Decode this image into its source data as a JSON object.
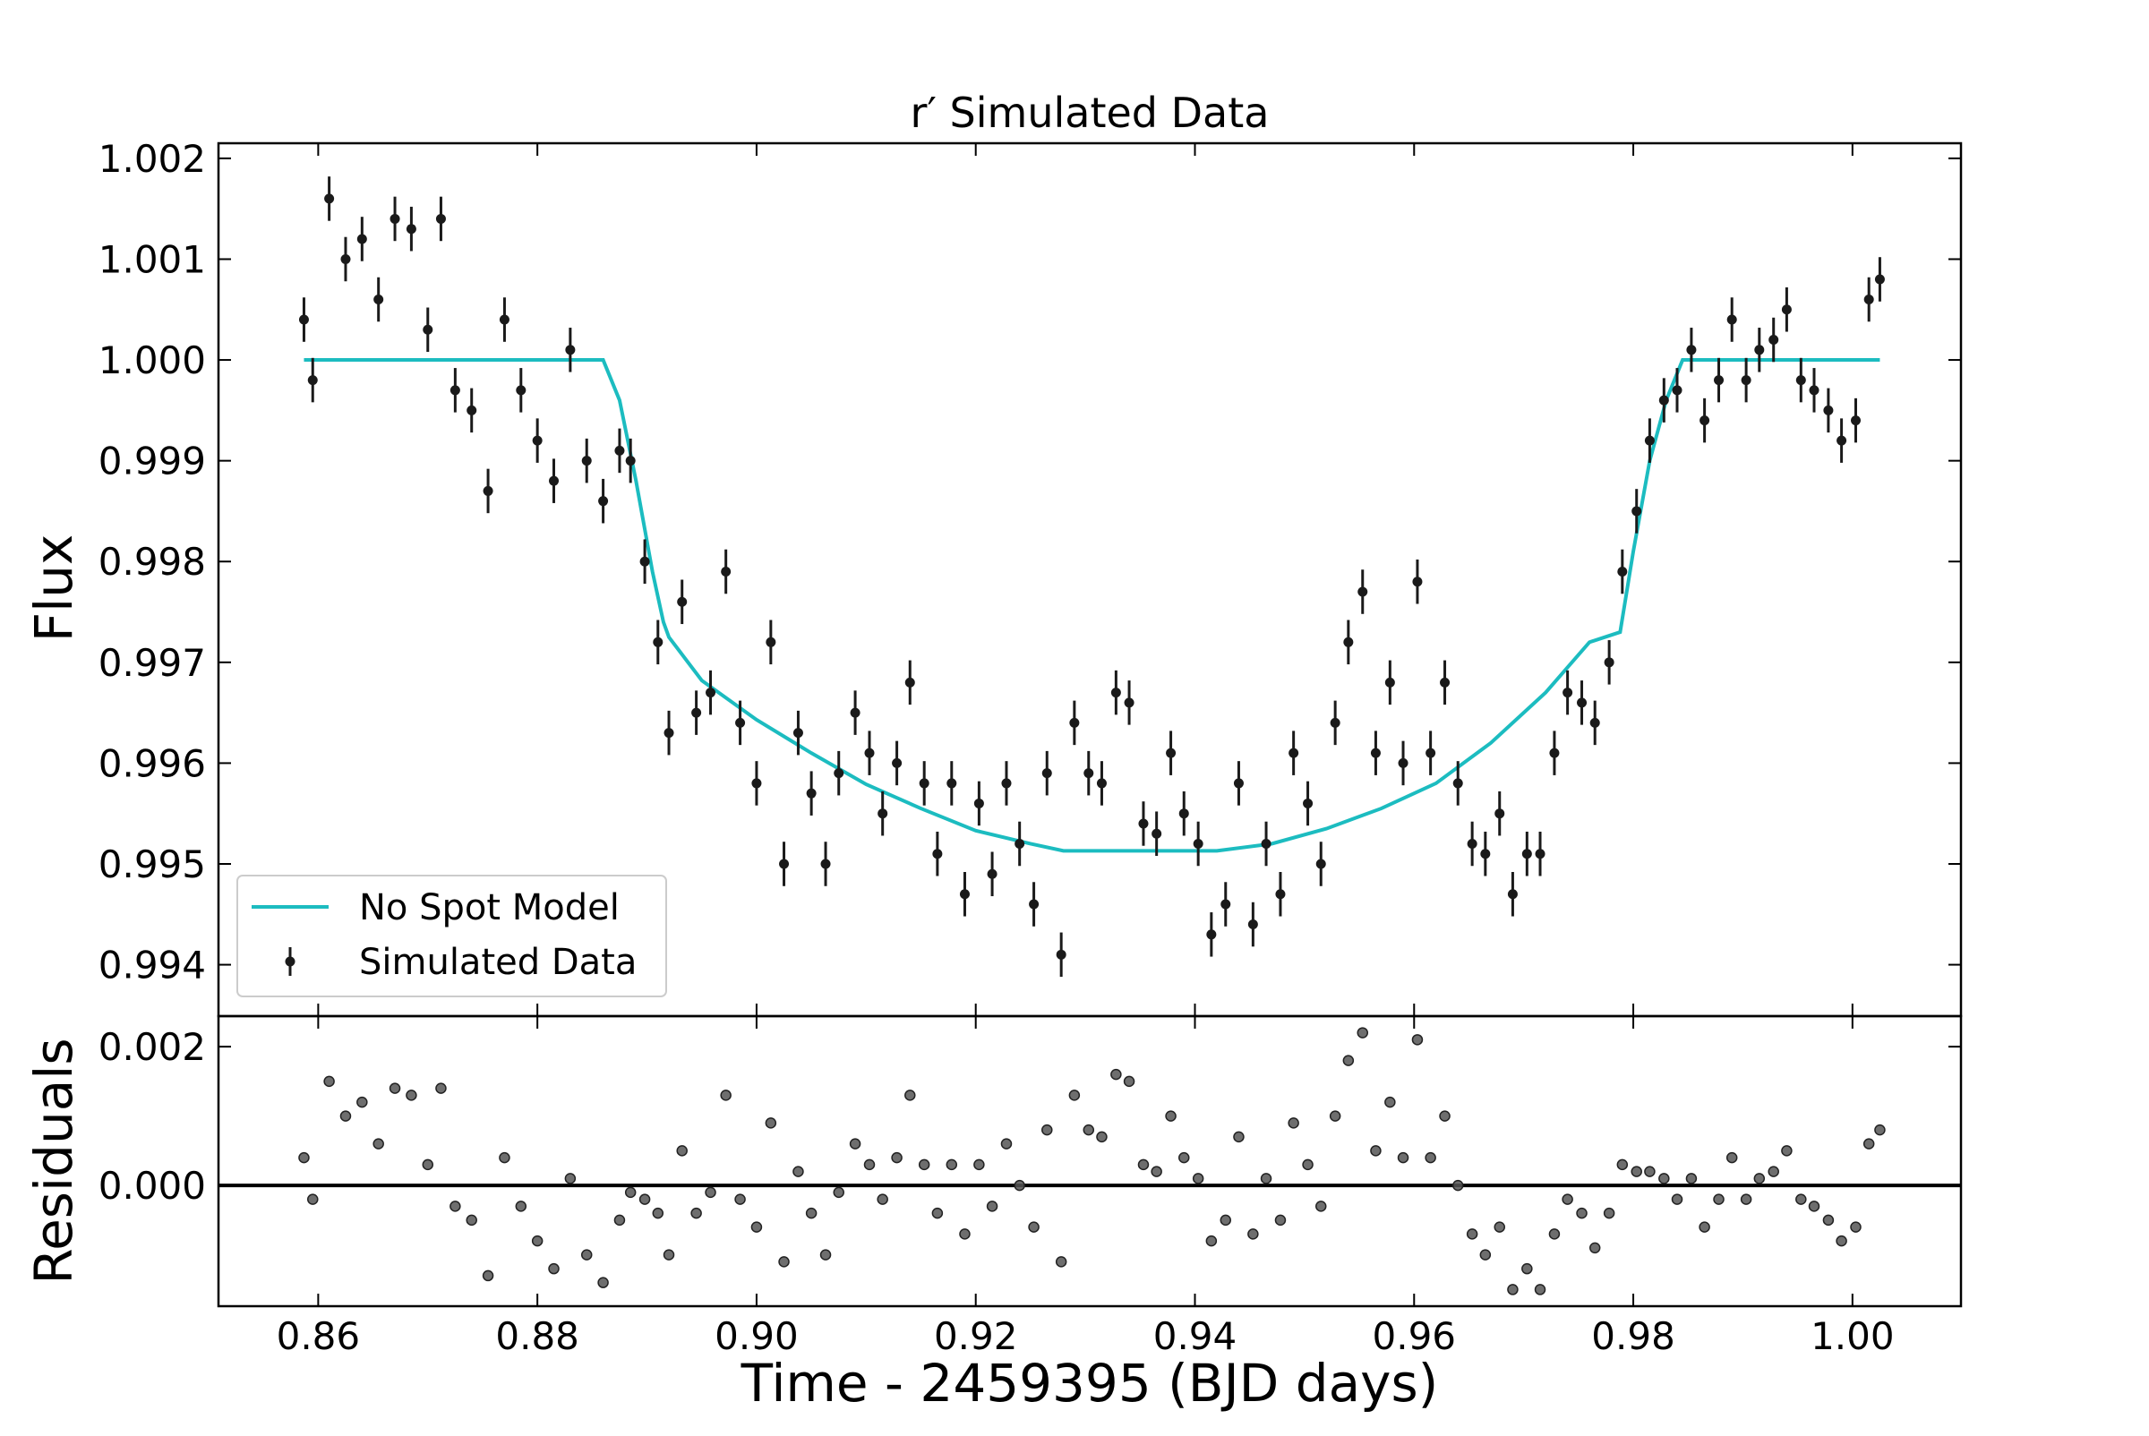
{
  "chart_data": {
    "type": "errorbar",
    "title": "r′ Simulated Data",
    "xlabel": "Time - 2459395 (BJD days)",
    "ylabel": "Flux",
    "xlim": [
      0.8509,
      1.0099
    ],
    "xticks": [
      0.86,
      0.88,
      {
        "value": 0.9,
        "label": "0.90"
      },
      0.92,
      0.94,
      0.96,
      0.98,
      {
        "value": 1,
        "label": "1.00"
      }
    ],
    "ylim": [
      0.99349,
      1.00215
    ],
    "yticks": [
      0.994,
      0.995,
      0.996,
      0.997,
      0.998,
      0.999,
      {
        "value": 1,
        "label": "1.000"
      },
      1.001,
      1.002
    ],
    "legend": "lower left",
    "x": [
      0.8587,
      0.8595,
      0.861,
      0.8625,
      0.864,
      0.8655,
      0.867,
      0.8685,
      0.87,
      0.8712,
      0.8725,
      0.874,
      0.8755,
      0.877,
      0.8785,
      0.88,
      0.8815,
      0.883,
      0.8845,
      0.886,
      0.8875,
      0.8885,
      0.8898,
      0.891,
      0.892,
      0.8932,
      0.8945,
      0.8958,
      0.8972,
      0.8985,
      0.9,
      0.9013,
      0.9025,
      0.9038,
      0.905,
      0.9063,
      0.9075,
      0.909,
      0.9103,
      0.9115,
      0.9128,
      0.914,
      0.9153,
      0.9165,
      0.9178,
      0.919,
      0.9203,
      0.9215,
      0.9228,
      0.924,
      0.9253,
      0.9265,
      0.9278,
      0.929,
      0.9303,
      0.9315,
      0.9328,
      0.934,
      0.9353,
      0.9365,
      0.9378,
      0.939,
      0.9403,
      0.9415,
      0.9428,
      0.944,
      0.9453,
      0.9465,
      0.9478,
      0.949,
      0.9503,
      0.9515,
      0.9528,
      0.954,
      0.9553,
      0.9565,
      0.9578,
      0.959,
      0.9603,
      0.9615,
      0.9628,
      0.964,
      0.9653,
      0.9665,
      0.9678,
      0.969,
      0.9703,
      0.9715,
      0.9728,
      0.974,
      0.9753,
      0.9765,
      0.9778,
      0.979,
      0.9803,
      0.9815,
      0.9828,
      0.984,
      0.9853,
      0.9865,
      0.9878,
      0.989,
      0.9903,
      0.9915,
      0.9928,
      0.994,
      0.9953,
      0.9965,
      0.9978,
      0.999,
      1.0003,
      1.0015,
      1.0025
    ],
    "series": [
      {
        "name": "No Spot Model",
        "type": "line",
        "color": "#1cbcc0",
        "x": [
          0.8587,
          0.886,
          0.8875,
          0.889,
          0.8905,
          0.8915,
          0.892,
          0.895,
          0.9,
          0.905,
          0.91,
          0.915,
          0.92,
          0.925,
          0.928,
          0.935,
          0.942,
          0.947,
          0.952,
          0.957,
          0.962,
          0.967,
          0.972,
          0.976,
          0.9788,
          0.98,
          0.9815,
          0.983,
          0.9845,
          1.0025
        ],
        "values": [
          1.0,
          1.0,
          0.9996,
          0.9988,
          0.9979,
          0.9974,
          0.99725,
          0.99682,
          0.99643,
          0.9961,
          0.99579,
          0.99555,
          0.99533,
          0.9952,
          0.99513,
          0.99513,
          0.99513,
          0.9952,
          0.99535,
          0.99555,
          0.9958,
          0.9962,
          0.9967,
          0.9972,
          0.9973,
          0.9981,
          0.999,
          0.9996,
          1.0,
          1.0
        ]
      },
      {
        "name": "Simulated Data",
        "type": "errorbar",
        "color": "#1a1a1a",
        "yerr": 0.00022,
        "values": [
          1.0004,
          0.9998,
          1.0016,
          1.001,
          1.0012,
          1.0006,
          1.0014,
          1.0013,
          1.0003,
          1.0014,
          0.9997,
          0.9995,
          0.9987,
          1.0004,
          0.9997,
          0.9992,
          0.9988,
          1.0001,
          0.999,
          0.9986,
          0.9991,
          0.999,
          0.998,
          0.9972,
          0.9963,
          0.9976,
          0.9965,
          0.9967,
          0.9979,
          0.9964,
          0.9958,
          0.9972,
          0.995,
          0.9963,
          0.9957,
          0.995,
          0.9959,
          0.9965,
          0.9961,
          0.9955,
          0.996,
          0.9968,
          0.9958,
          0.9951,
          0.9958,
          0.9947,
          0.9956,
          0.9949,
          0.9958,
          0.9952,
          0.9946,
          0.9959,
          0.9941,
          0.9964,
          0.9959,
          0.9958,
          0.9967,
          0.9966,
          0.9954,
          0.9953,
          0.9961,
          0.9955,
          0.9952,
          0.9943,
          0.9946,
          0.9958,
          0.9944,
          0.9952,
          0.9947,
          0.9961,
          0.9956,
          0.995,
          0.9964,
          0.9972,
          0.9977,
          0.9961,
          0.9968,
          0.996,
          0.9978,
          0.9961,
          0.9968,
          0.9958,
          0.9952,
          0.9951,
          0.9955,
          0.9947,
          0.9951,
          0.9951,
          0.9961,
          0.9967,
          0.9966,
          0.9964,
          0.997,
          0.9979,
          0.9985,
          0.9992,
          0.9996,
          0.9997,
          1.0001,
          0.9994,
          0.9998,
          1.0004,
          0.9998,
          1.0001,
          1.0002,
          1.0005,
          0.9998,
          0.9997,
          0.9995,
          0.9992,
          0.9994,
          1.0006,
          1.0008
        ]
      }
    ],
    "residuals": {
      "type": "scatter",
      "ylabel": "Residuals",
      "color": "#555555",
      "reference_line": 0,
      "ylim": [
        -0.00174,
        0.00244
      ],
      "yticks": [
        {
          "value": 0,
          "label": "0.000"
        },
        0.002
      ],
      "values": [
        0.0004,
        -0.0002,
        0.0015,
        0.001,
        0.0012,
        0.0006,
        0.0014,
        0.0013,
        0.0003,
        0.0014,
        -0.0003,
        -0.0005,
        -0.0013,
        0.0004,
        -0.0003,
        -0.0008,
        -0.0012,
        0.0001,
        -0.001,
        -0.0014,
        -0.0005,
        -0.0001,
        -0.0002,
        -0.0004,
        -0.001,
        0.0005,
        -0.0004,
        -0.0001,
        0.0013,
        -0.0002,
        -0.0006,
        0.0009,
        -0.0011,
        0.0002,
        -0.0004,
        -0.001,
        -0.0001,
        0.0006,
        0.0003,
        -0.0002,
        0.0004,
        0.0013,
        0.0003,
        -0.0004,
        0.0003,
        -0.0007,
        0.0003,
        -0.0003,
        0.0006,
        0,
        -0.0006,
        0.0008,
        -0.0011,
        0.0013,
        0.0008,
        0.0007,
        0.0016,
        0.0015,
        0.0003,
        0.0002,
        0.001,
        0.0004,
        0.0001,
        -0.0008,
        -0.0005,
        0.0007,
        -0.0007,
        0.0001,
        -0.0005,
        0.0009,
        0.0003,
        -0.0003,
        0.001,
        0.0018,
        0.0022,
        0.0005,
        0.0012,
        0.0004,
        0.0021,
        0.0004,
        0.001,
        0,
        -0.0007,
        -0.001,
        -0.0006,
        -0.0015,
        -0.0012,
        -0.0015,
        -0.0007,
        -0.0002,
        -0.0004,
        -0.0009,
        -0.0004,
        0.0003,
        0.0002,
        0.0002,
        0.0001,
        -0.0002,
        0.0001,
        -0.0006,
        -0.0002,
        0.0004,
        -0.0002,
        0.0001,
        0.0002,
        0.0005,
        -0.0002,
        -0.0003,
        -0.0005,
        -0.0008,
        -0.0006,
        0.0006,
        0.0008
      ]
    }
  }
}
